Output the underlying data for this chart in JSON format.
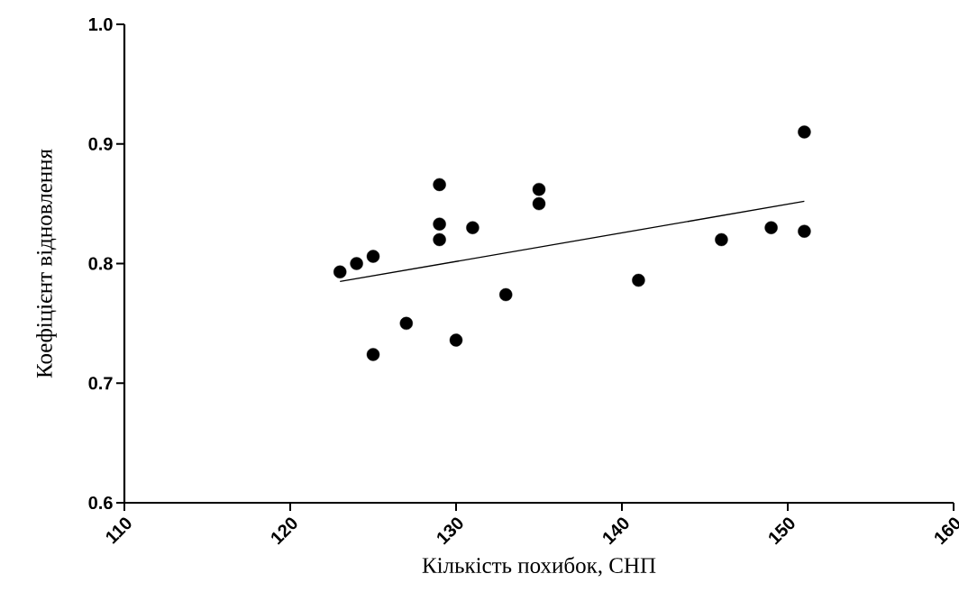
{
  "chart_data": {
    "type": "scatter",
    "xlabel": "Кількість похибок, СНП",
    "ylabel": "Коефіцієнт відновлення",
    "series": [
      {
        "color": "#000000",
        "marker": "circle",
        "x": [
          123,
          124,
          125,
          125,
          127,
          129,
          129,
          129,
          130,
          131,
          133,
          135,
          135,
          141,
          146,
          149,
          151,
          151
        ],
        "values": [
          0.793,
          0.8,
          0.806,
          0.724,
          0.75,
          0.866,
          0.833,
          0.82,
          0.736,
          0.83,
          0.774,
          0.862,
          0.85,
          0.786,
          0.82,
          0.83,
          0.91,
          0.827
        ]
      },
      {
        "type": "line",
        "color": "#000000",
        "marker": "none",
        "x": [
          123,
          151
        ],
        "values": [
          0.785,
          0.852
        ]
      }
    ],
    "xlim": [
      110,
      160
    ],
    "ylim": [
      0.6,
      1.0
    ],
    "xticks": [
      110,
      120,
      130,
      140,
      150,
      160
    ],
    "yticks": [
      {
        "value": 0.6,
        "label": "0.6"
      },
      {
        "value": 0.7,
        "label": "0.7"
      },
      {
        "value": 0.8,
        "label": "0.8"
      },
      {
        "value": 0.9,
        "label": "0.9"
      },
      {
        "value": 1.0,
        "label": "1.0"
      }
    ]
  }
}
